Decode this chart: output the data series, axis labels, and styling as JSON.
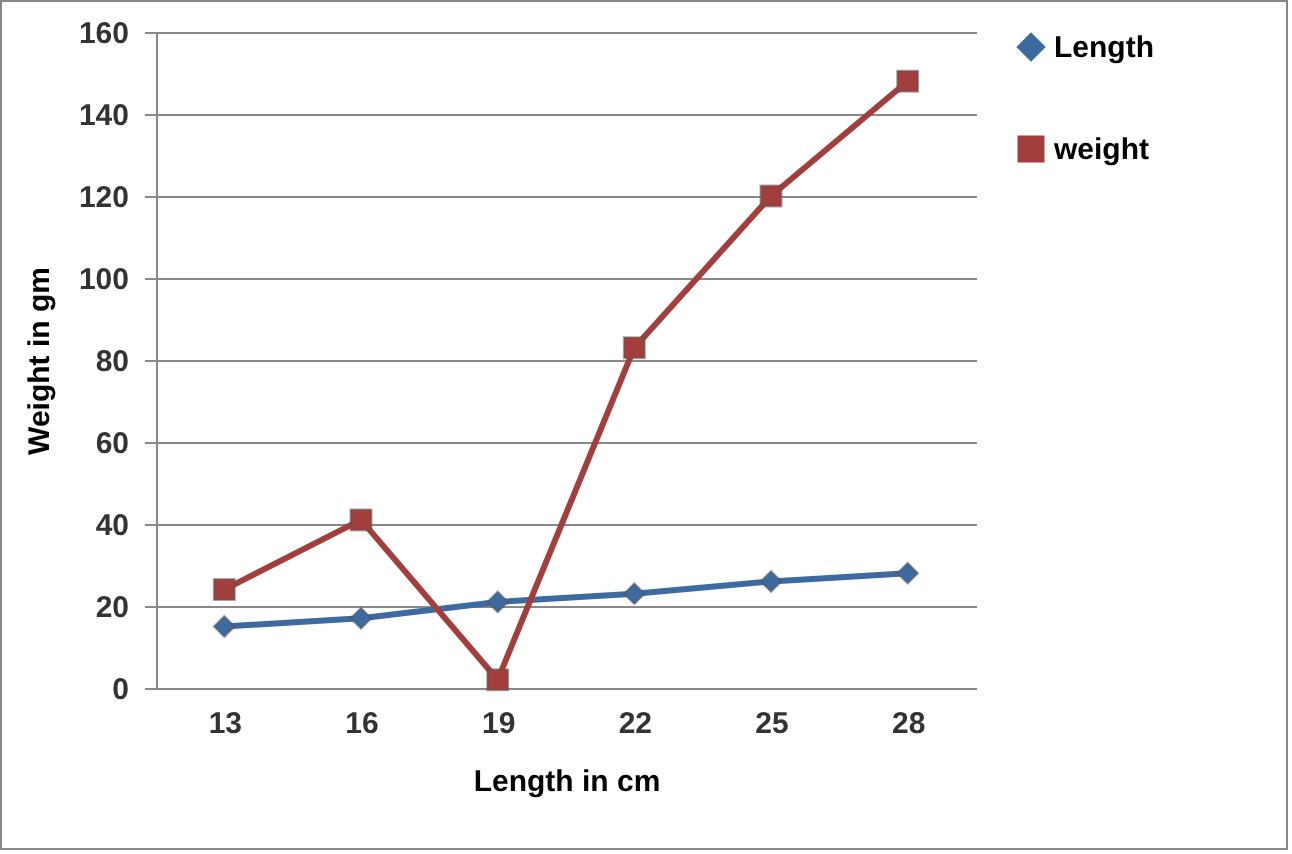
{
  "chart_data": {
    "type": "line",
    "xlabel": "Length in cm",
    "ylabel": "Weight in gm",
    "categories": [
      "13",
      "16",
      "19",
      "22",
      "25",
      "28"
    ],
    "series": [
      {
        "name": "Length",
        "color": "#3c6aa1",
        "marker": "diamond",
        "values": [
          15,
          17,
          21,
          23,
          26,
          28
        ]
      },
      {
        "name": "weight",
        "color": "#a23e3b",
        "marker": "square",
        "values": [
          24,
          41,
          2,
          83,
          120,
          148
        ]
      }
    ],
    "ylim": [
      0,
      160
    ],
    "yticks": [
      0,
      20,
      40,
      60,
      80,
      100,
      120,
      140,
      160
    ],
    "grid": "y",
    "legend": "right"
  }
}
